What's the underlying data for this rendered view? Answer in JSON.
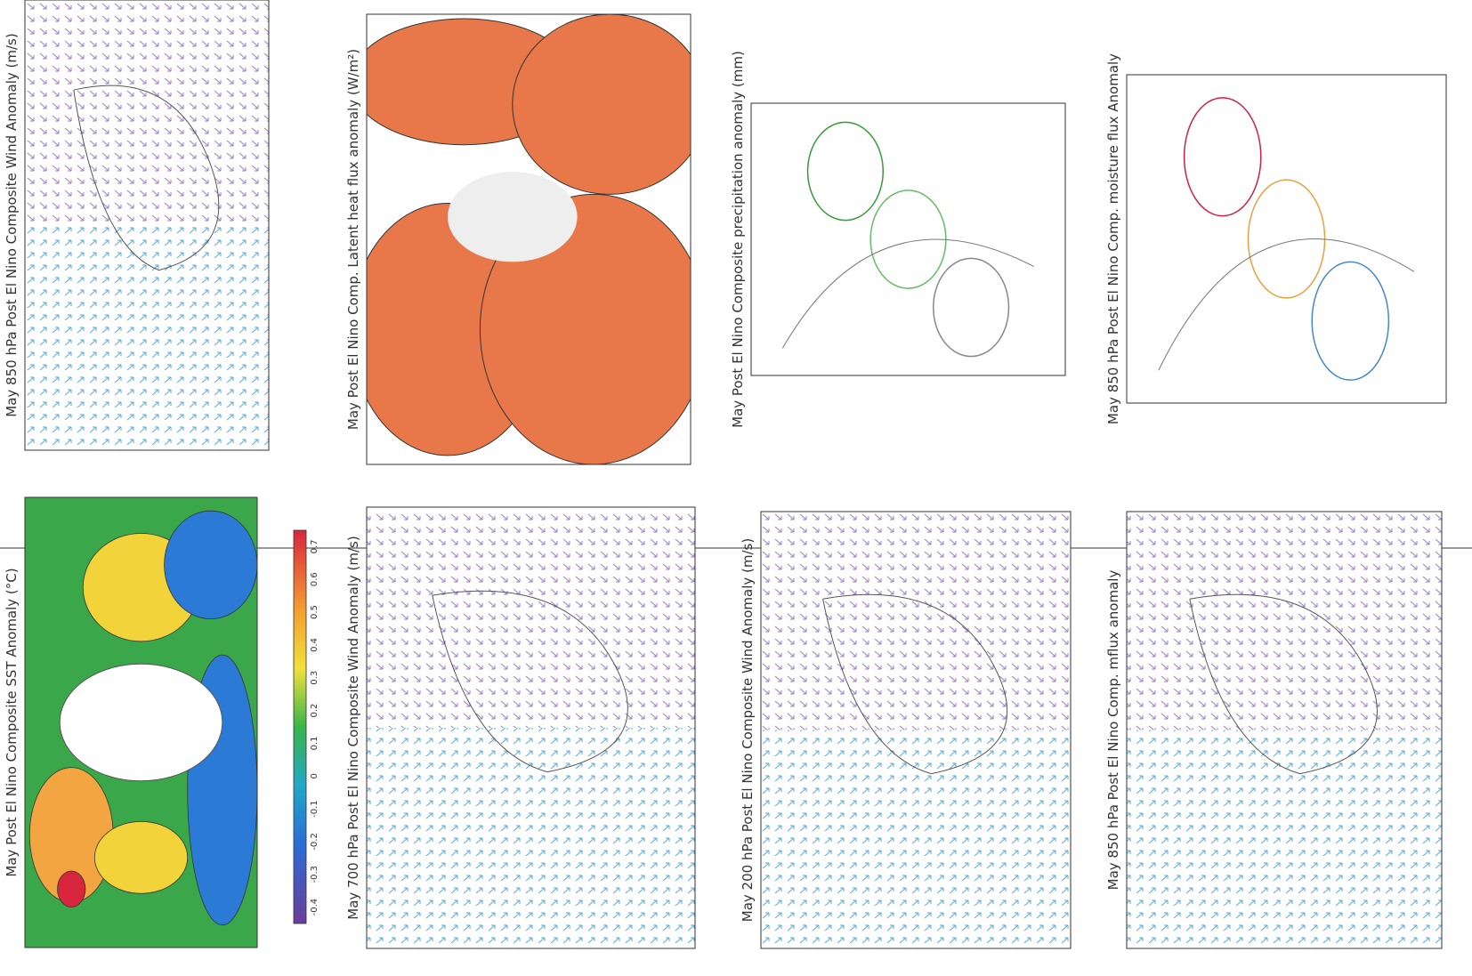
{
  "panels": [
    {
      "title": "May 850 hPa Post El Nino Composite Wind Anomaly (m/s)"
    },
    {
      "title": "May Post El Nino Comp. Latent heat flux anomaly (W/m²)"
    },
    {
      "title": "May Post El Nino Composite precipitation anomaly (mm)"
    },
    {
      "title": "May 850 hPa Post El Nino Comp. moisture flux Anomaly"
    },
    {
      "title": "May Post El Nino Composite SST Anomaly (°C)"
    },
    {
      "title": "May 700 hPa Post El Nino Composite Wind Anomaly (m/s)"
    },
    {
      "title": "May 200 hPa Post El Nino Composite Wind Anomaly (m/s)"
    },
    {
      "title": "May 850 hPa Post El Nino Comp. mflux anomaly"
    }
  ],
  "sst_colorbar": {
    "labels": [
      -0.4,
      -0.3,
      -0.2,
      -0.1,
      0,
      0.1,
      0.2,
      0.3,
      0.4,
      0.5,
      0.6,
      0.7
    ]
  }
}
